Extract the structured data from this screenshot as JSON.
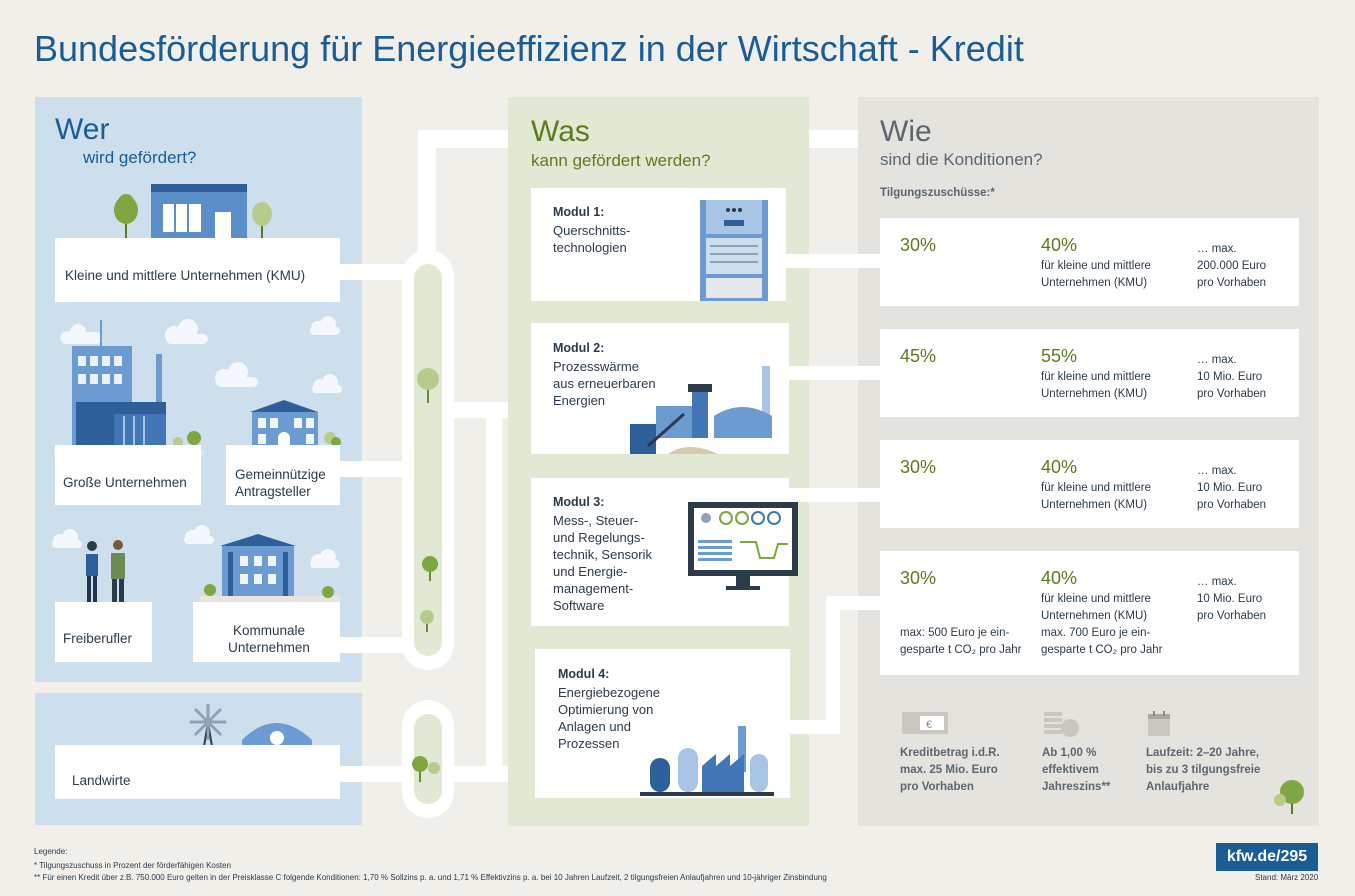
{
  "title": "Bundesförderung für Energieeffizienz in der Wirtschaft - Kredit",
  "wer": {
    "heading": "Wer",
    "subheading": "wird gefördert?",
    "items": [
      "Kleine und mittlere Unternehmen (KMU)",
      "Große Unternehmen",
      "Gemeinnützige Antragsteller",
      "Freiberufler",
      "Kommunale Unternehmen",
      "Landwirte"
    ]
  },
  "was": {
    "heading": "Was",
    "subheading": "kann gefördert werden?",
    "modules": [
      {
        "title": "Modul 1:",
        "text": "Querschnitts-\ntechnologien"
      },
      {
        "title": "Modul 2:",
        "text": "Prozesswärme\naus erneuerbaren\nEnergien"
      },
      {
        "title": "Modul 3:",
        "text": "Mess-, Steuer-\nund Regelungs-\ntechnik, Sensorik\nund Energie-\nmanagement-\nSoftware"
      },
      {
        "title": "Modul 4:",
        "text": "Energiebezogene\nOptimierung von\nAnlagen und\nProzessen"
      }
    ]
  },
  "wie": {
    "heading": "Wie",
    "subheading": "sind die Konditionen?",
    "tilgung_label": "Tilgungszuschüsse:*",
    "rows": [
      {
        "base": "30%",
        "kmu": "40%",
        "kmu_text": "für kleine und mittlere\nUnternehmen (KMU)",
        "max": "… max.\n200.000 Euro\npro Vorhaben"
      },
      {
        "base": "45%",
        "kmu": "55%",
        "kmu_text": "für kleine und mittlere\nUnternehmen (KMU)",
        "max": "… max.\n10 Mio. Euro\npro Vorhaben"
      },
      {
        "base": "30%",
        "kmu": "40%",
        "kmu_text": "für kleine und mittlere\nUnternehmen (KMU)",
        "max": "… max.\n10 Mio. Euro\npro Vorhaben"
      },
      {
        "base": "30%",
        "kmu": "40%",
        "kmu_text": "für kleine und mittlere\nUnternehmen (KMU)\nmax. 700 Euro je ein-\ngesparte t CO₂ pro Jahr",
        "max": "… max.\n10 Mio. Euro\npro Vorhaben",
        "base_note": "max: 500 Euro je ein-\ngesparte t CO₂ pro Jahr"
      }
    ],
    "facts": [
      {
        "icon": "money-icon",
        "text": "Kreditbetrag i.d.R.\nmax. 25 Mio. Euro\npro Vorhaben"
      },
      {
        "icon": "coins-icon",
        "text": "Ab 1,00 %\neffektivem\nJahreszins**"
      },
      {
        "icon": "calendar-icon",
        "text": "Laufzeit: 2–20 Jahre,\nbis zu 3 tilgungsfreie\nAnlaufjahre"
      }
    ]
  },
  "legend": {
    "heading": "Legende:",
    "line1": "* Tilgungszuschuss in Prozent der förderfähigen Kosten",
    "line2": "** Für einen Kredit über z.B. 750.000 Euro gelten in der Preisklasse C folgende Konditionen: 1,70 % Sollzins p. a. und 1,71 % Effektivzins p. a. bei 10 Jahren Laufzeit, 2 tilgungsfreien Anlaufjahren und 10-jähriger Zinsbindung"
  },
  "footer": {
    "link": "kfw.de/295",
    "date": "Stand: März 2020"
  },
  "colors": {
    "brand_blue": "#1a5c94",
    "green": "#5e7a21",
    "wer_bg": "#cddfec",
    "was_bg": "#e1e8d4",
    "wie_bg": "#e4e3dd"
  }
}
